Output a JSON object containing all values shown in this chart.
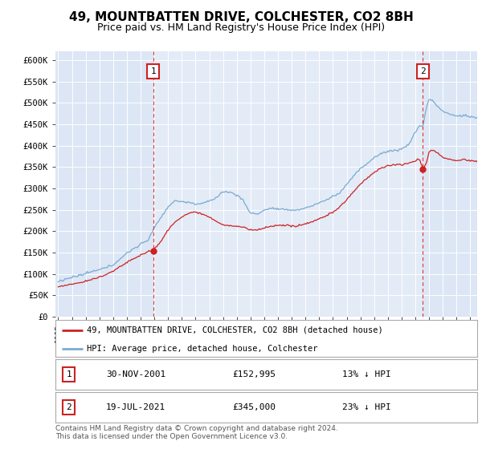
{
  "title": "49, MOUNTBATTEN DRIVE, COLCHESTER, CO2 8BH",
  "subtitle": "Price paid vs. HM Land Registry's House Price Index (HPI)",
  "bg_color": "#dce6f5",
  "plot_bg_color": "#dce6f5",
  "highlight_bg_color": "#e8f0fa",
  "ylim": [
    0,
    620000
  ],
  "yticks": [
    0,
    50000,
    100000,
    150000,
    200000,
    250000,
    300000,
    350000,
    400000,
    450000,
    500000,
    550000,
    600000
  ],
  "ytick_labels": [
    "£0",
    "£50K",
    "£100K",
    "£150K",
    "£200K",
    "£250K",
    "£300K",
    "£350K",
    "£400K",
    "£450K",
    "£500K",
    "£550K",
    "£600K"
  ],
  "sale1_date_num": 2001.92,
  "sale1_price": 152995,
  "sale1_label": "1",
  "sale1_date_str": "30-NOV-2001",
  "sale1_price_str": "£152,995",
  "sale1_pct": "13% ↓ HPI",
  "sale2_date_num": 2021.55,
  "sale2_price": 345000,
  "sale2_label": "2",
  "sale2_date_str": "19-JUL-2021",
  "sale2_price_str": "£345,000",
  "sale2_pct": "23% ↓ HPI",
  "hpi_color": "#7aaad0",
  "price_color": "#cc2222",
  "vline_color": "#dd3333",
  "legend_label1": "49, MOUNTBATTEN DRIVE, COLCHESTER, CO2 8BH (detached house)",
  "legend_label2": "HPI: Average price, detached house, Colchester",
  "footer": "Contains HM Land Registry data © Crown copyright and database right 2024.\nThis data is licensed under the Open Government Licence v3.0.",
  "xlim_start": 1994.8,
  "xlim_end": 2025.5
}
